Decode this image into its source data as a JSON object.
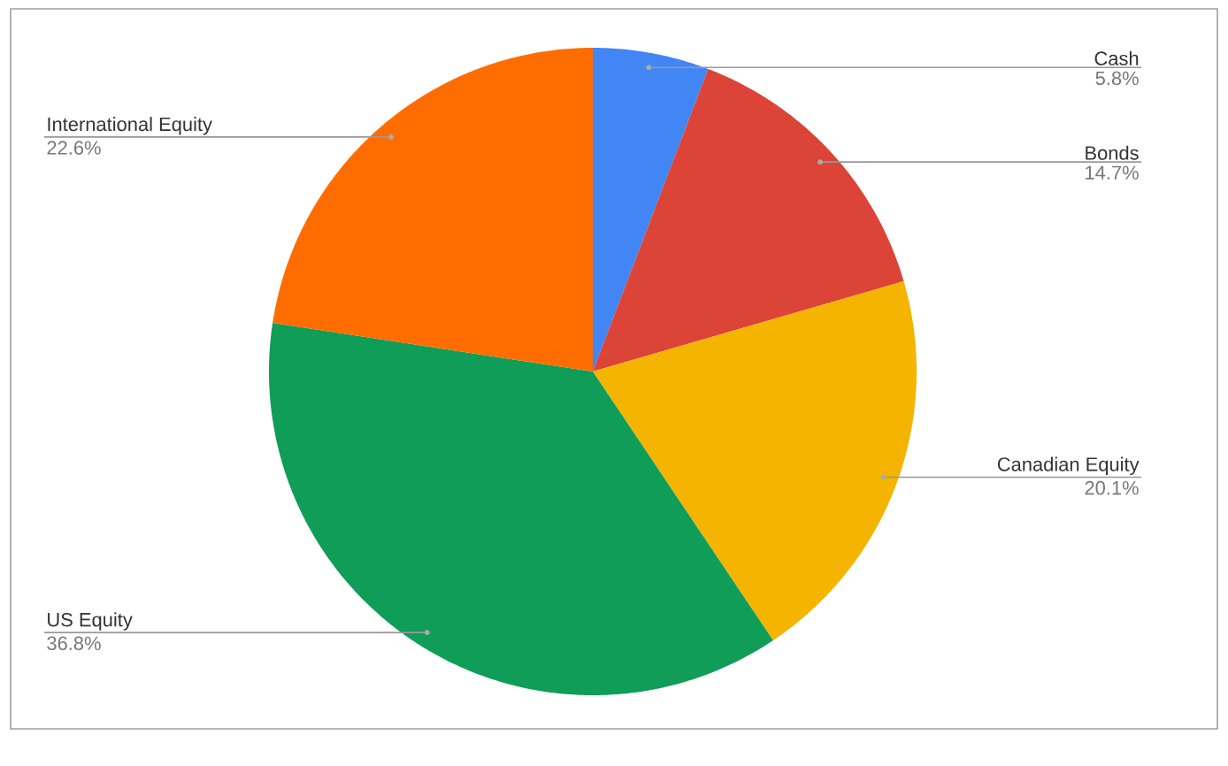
{
  "chart_data": {
    "type": "pie",
    "categories": [
      "Cash",
      "Bonds",
      "Canadian Equity",
      "US Equity",
      "International Equity"
    ],
    "values": [
      5.8,
      14.7,
      20.1,
      36.8,
      22.6
    ],
    "colors": [
      "#4285f4",
      "#db4437",
      "#f4b400",
      "#0f9d58",
      "#ff6d01"
    ],
    "value_labels": [
      "5.8%",
      "14.7%",
      "20.1%",
      "36.8%",
      "22.6%"
    ]
  }
}
